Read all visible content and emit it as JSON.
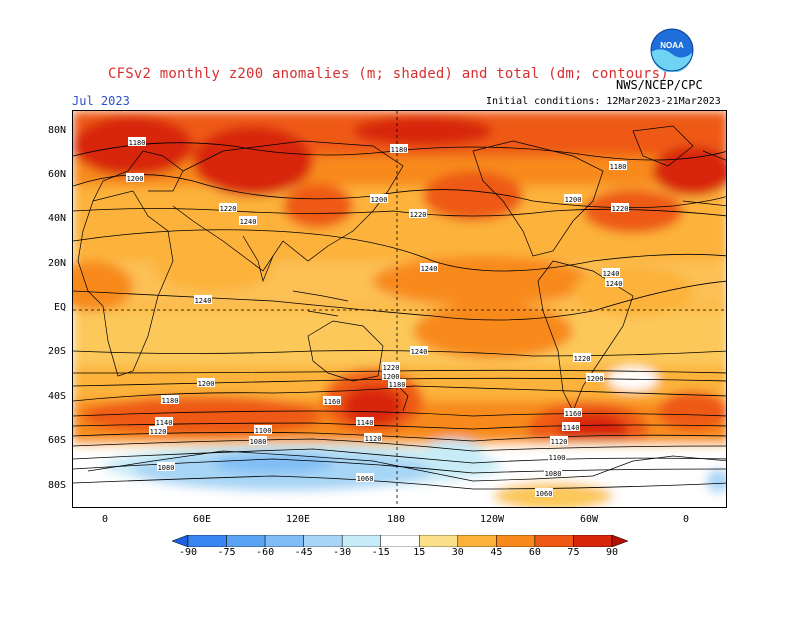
{
  "header": {
    "title": "CFSv2 monthly z200 anomalies (m; shaded) and total (dm; contours)",
    "agency": "NWS/NCEP/CPC",
    "period": "Jul 2023",
    "initial_conditions": "Initial conditions: 12Mar2023-21Mar2023",
    "logo_text": "NOAA"
  },
  "axes": {
    "lat_labels": [
      "80N",
      "60N",
      "40N",
      "20N",
      "EQ",
      "20S",
      "40S",
      "60S",
      "80S"
    ],
    "lon_labels": [
      "0",
      "60E",
      "120E",
      "180",
      "120W",
      "60W",
      "0"
    ]
  },
  "colorbar": {
    "labels": [
      "-90",
      "-75",
      "-60",
      "-45",
      "-30",
      "-15",
      "15",
      "30",
      "45",
      "60",
      "75",
      "90"
    ],
    "colors": [
      "#1c5fe0",
      "#3a86f0",
      "#5aa2f2",
      "#80bdf5",
      "#a7d5f5",
      "#c8ecf7",
      "#ffffff",
      "#fde08a",
      "#fcb23a",
      "#f88a1c",
      "#ee5a14",
      "#d8260c",
      "#b41006"
    ]
  },
  "contour_labels": [
    "1180",
    "1180",
    "1180",
    "1200",
    "1200",
    "1200",
    "1220",
    "1220",
    "1220",
    "1240",
    "1240",
    "1240",
    "1240",
    "1240",
    "1240",
    "1220",
    "1200",
    "1180",
    "1200",
    "1180",
    "1140",
    "1120",
    "1160",
    "1140",
    "1120",
    "1100",
    "1080",
    "1080",
    "1060",
    "1220",
    "1200",
    "1160",
    "1140",
    "1120",
    "1100",
    "1080",
    "1060"
  ]
}
